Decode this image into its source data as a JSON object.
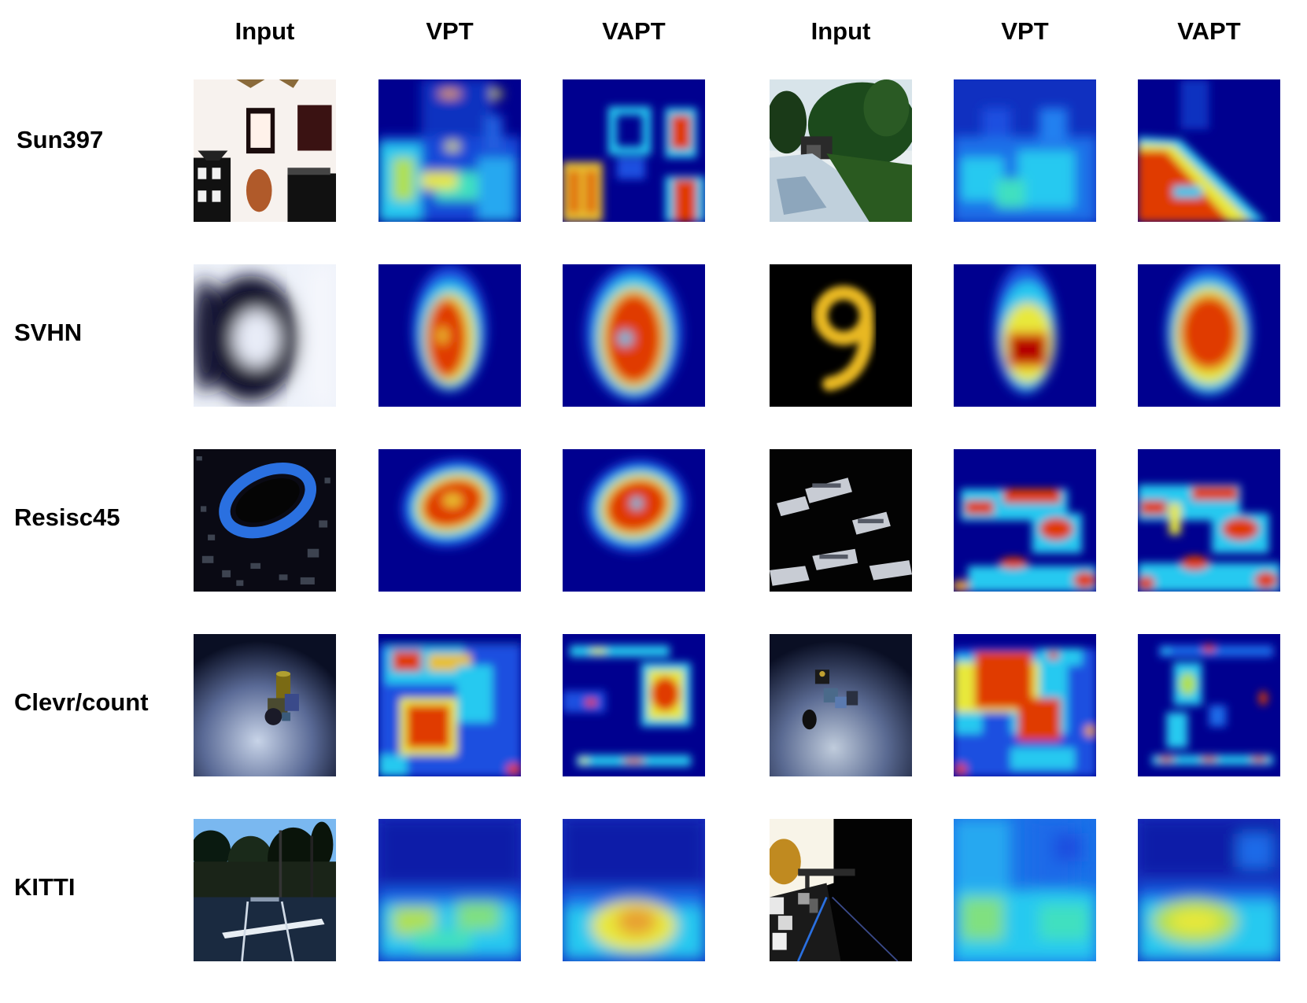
{
  "columns": [
    {
      "label": "Input",
      "kind": "input"
    },
    {
      "label": "VPT",
      "kind": "vpt"
    },
    {
      "label": "VAPT",
      "kind": "vapt"
    },
    {
      "label": "Input",
      "kind": "input"
    },
    {
      "label": "VPT",
      "kind": "vpt"
    },
    {
      "label": "VAPT",
      "kind": "vapt"
    }
  ],
  "rows": [
    {
      "label": "Sun397"
    },
    {
      "label": "SVHN"
    },
    {
      "label": "Resisc45"
    },
    {
      "label": "Clevr/count"
    },
    {
      "label": "KITTI"
    }
  ],
  "colormap": {
    "low": "#00008f",
    "mid_low": "#1a4fe0",
    "mid": "#27c9f0",
    "mid_high": "#e8e83a",
    "high": "#e03a00",
    "peak": "#b30000"
  }
}
